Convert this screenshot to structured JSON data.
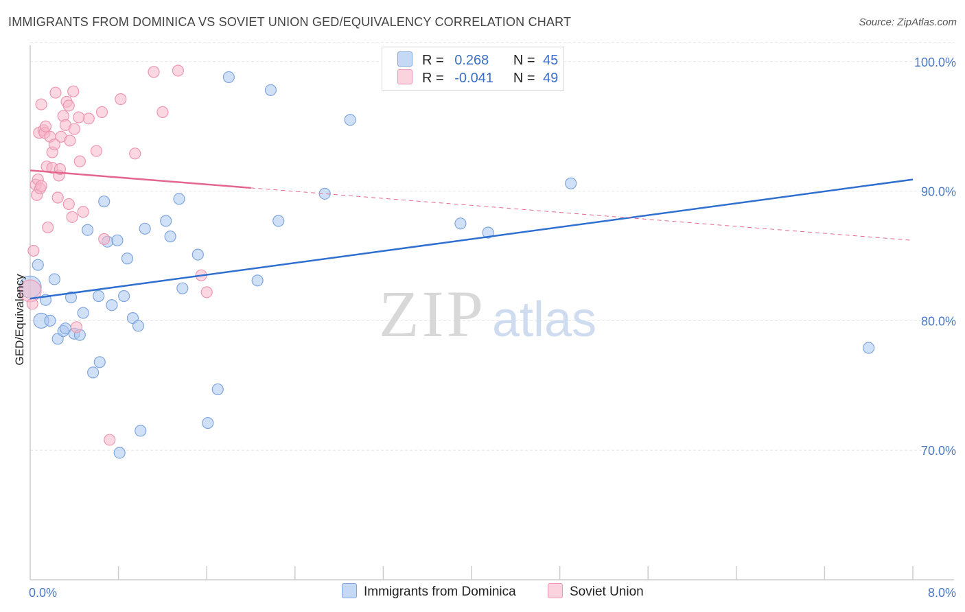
{
  "header": {
    "title": "IMMIGRANTS FROM DOMINICA VS SOVIET UNION GED/EQUIVALENCY CORRELATION CHART",
    "source": "Source: ZipAtlas.com"
  },
  "watermark": {
    "zip": "ZIP",
    "atlas": "atlas"
  },
  "legend_top": {
    "rows": [
      {
        "r_label": "R =",
        "r_value": "0.268",
        "n_label": "N =",
        "n_value": "45",
        "color": "#a9c6ef"
      },
      {
        "r_label": "R =",
        "r_value": "-0.041",
        "n_label": "N =",
        "n_value": "49",
        "color": "#f6b6c9"
      }
    ]
  },
  "legend_bottom": [
    {
      "label": "Immigrants from Dominica",
      "color": "#a9c6ef"
    },
    {
      "label": "Soviet Union",
      "color": "#f6b6c9"
    }
  ],
  "chart_data": {
    "type": "scatter",
    "title": "IMMIGRANTS FROM DOMINICA VS SOVIET UNION GED/EQUIVALENCY CORRELATION CHART",
    "xlabel": "",
    "ylabel": "GED/Equivalency",
    "xlim": [
      0.0,
      8.0
    ],
    "ylim": [
      60.0,
      102.0
    ],
    "x_tick_labels": [
      {
        "value": 0.0,
        "label": "0.0%"
      },
      {
        "value": 8.0,
        "label": "8.0%"
      }
    ],
    "y_tick_labels": [
      {
        "value": 70.0,
        "label": "70.0%"
      },
      {
        "value": 80.0,
        "label": "80.0%"
      },
      {
        "value": 90.0,
        "label": "90.0%"
      },
      {
        "value": 100.0,
        "label": "100.0%"
      }
    ],
    "grid": true,
    "legend_position": "top-center",
    "series": [
      {
        "name": "Immigrants from Dominica",
        "color": "#a9c6ef",
        "edge_color": "#7fa6de",
        "line_color": "#2f6fcf",
        "trend": {
          "x": [
            0.0,
            8.0
          ],
          "y": [
            81.7,
            90.9
          ]
        },
        "points": [
          [
            0.0,
            82.6
          ],
          [
            0.07,
            84.3
          ],
          [
            0.1,
            80.0
          ],
          [
            0.14,
            81.6
          ],
          [
            0.18,
            80.0
          ],
          [
            0.22,
            83.2
          ],
          [
            0.25,
            78.6
          ],
          [
            0.3,
            79.2
          ],
          [
            0.32,
            79.4
          ],
          [
            0.37,
            81.8
          ],
          [
            0.4,
            79.0
          ],
          [
            0.45,
            78.9
          ],
          [
            0.48,
            80.6
          ],
          [
            0.52,
            87.0
          ],
          [
            0.57,
            76.0
          ],
          [
            0.62,
            81.9
          ],
          [
            0.63,
            76.8
          ],
          [
            0.67,
            89.2
          ],
          [
            0.7,
            86.1
          ],
          [
            0.74,
            81.2
          ],
          [
            0.79,
            86.2
          ],
          [
            0.81,
            69.8
          ],
          [
            0.85,
            81.9
          ],
          [
            0.88,
            84.8
          ],
          [
            0.93,
            80.2
          ],
          [
            0.98,
            79.6
          ],
          [
            1.0,
            71.5
          ],
          [
            1.04,
            87.1
          ],
          [
            1.23,
            87.7
          ],
          [
            1.27,
            86.5
          ],
          [
            1.35,
            89.4
          ],
          [
            1.38,
            82.5
          ],
          [
            1.52,
            85.1
          ],
          [
            1.61,
            72.1
          ],
          [
            1.7,
            74.7
          ],
          [
            1.8,
            98.8
          ],
          [
            2.06,
            83.1
          ],
          [
            2.18,
            97.8
          ],
          [
            2.25,
            87.7
          ],
          [
            2.67,
            89.8
          ],
          [
            2.9,
            95.5
          ],
          [
            3.9,
            87.5
          ],
          [
            4.15,
            86.8
          ],
          [
            4.9,
            90.6
          ],
          [
            7.6,
            77.9
          ]
        ]
      },
      {
        "name": "Soviet Union",
        "color": "#f6b6c9",
        "edge_color": "#ec97b1",
        "line_color": "#e4668f",
        "trend": {
          "x": [
            0.0,
            8.0
          ],
          "y": [
            91.6,
            86.2
          ]
        },
        "trend_solid_until": 2.0,
        "points": [
          [
            0.0,
            82.3
          ],
          [
            0.02,
            81.3
          ],
          [
            0.03,
            85.4
          ],
          [
            0.05,
            90.5
          ],
          [
            0.06,
            89.7
          ],
          [
            0.07,
            90.9
          ],
          [
            0.08,
            94.5
          ],
          [
            0.09,
            90.2
          ],
          [
            0.1,
            90.4
          ],
          [
            0.1,
            96.7
          ],
          [
            0.12,
            94.7
          ],
          [
            0.13,
            94.5
          ],
          [
            0.15,
            91.9
          ],
          [
            0.16,
            87.2
          ],
          [
            0.18,
            94.2
          ],
          [
            0.2,
            91.8
          ],
          [
            0.2,
            93.0
          ],
          [
            0.23,
            97.6
          ],
          [
            0.25,
            89.5
          ],
          [
            0.26,
            91.2
          ],
          [
            0.27,
            91.7
          ],
          [
            0.28,
            94.2
          ],
          [
            0.3,
            95.8
          ],
          [
            0.32,
            95.1
          ],
          [
            0.33,
            96.9
          ],
          [
            0.35,
            96.6
          ],
          [
            0.36,
            93.9
          ],
          [
            0.38,
            88.0
          ],
          [
            0.39,
            97.7
          ],
          [
            0.4,
            94.8
          ],
          [
            0.42,
            79.5
          ],
          [
            0.45,
            92.3
          ],
          [
            0.48,
            88.4
          ],
          [
            0.53,
            95.6
          ],
          [
            0.65,
            96.1
          ],
          [
            0.67,
            86.3
          ],
          [
            0.72,
            70.8
          ],
          [
            0.82,
            97.1
          ],
          [
            0.95,
            92.9
          ],
          [
            1.12,
            99.2
          ],
          [
            1.2,
            96.1
          ],
          [
            1.34,
            99.3
          ],
          [
            1.55,
            83.5
          ],
          [
            1.6,
            82.2
          ],
          [
            0.35,
            89.0
          ],
          [
            0.22,
            93.6
          ],
          [
            0.14,
            95.0
          ],
          [
            0.44,
            95.7
          ],
          [
            0.6,
            93.1
          ]
        ]
      }
    ]
  }
}
